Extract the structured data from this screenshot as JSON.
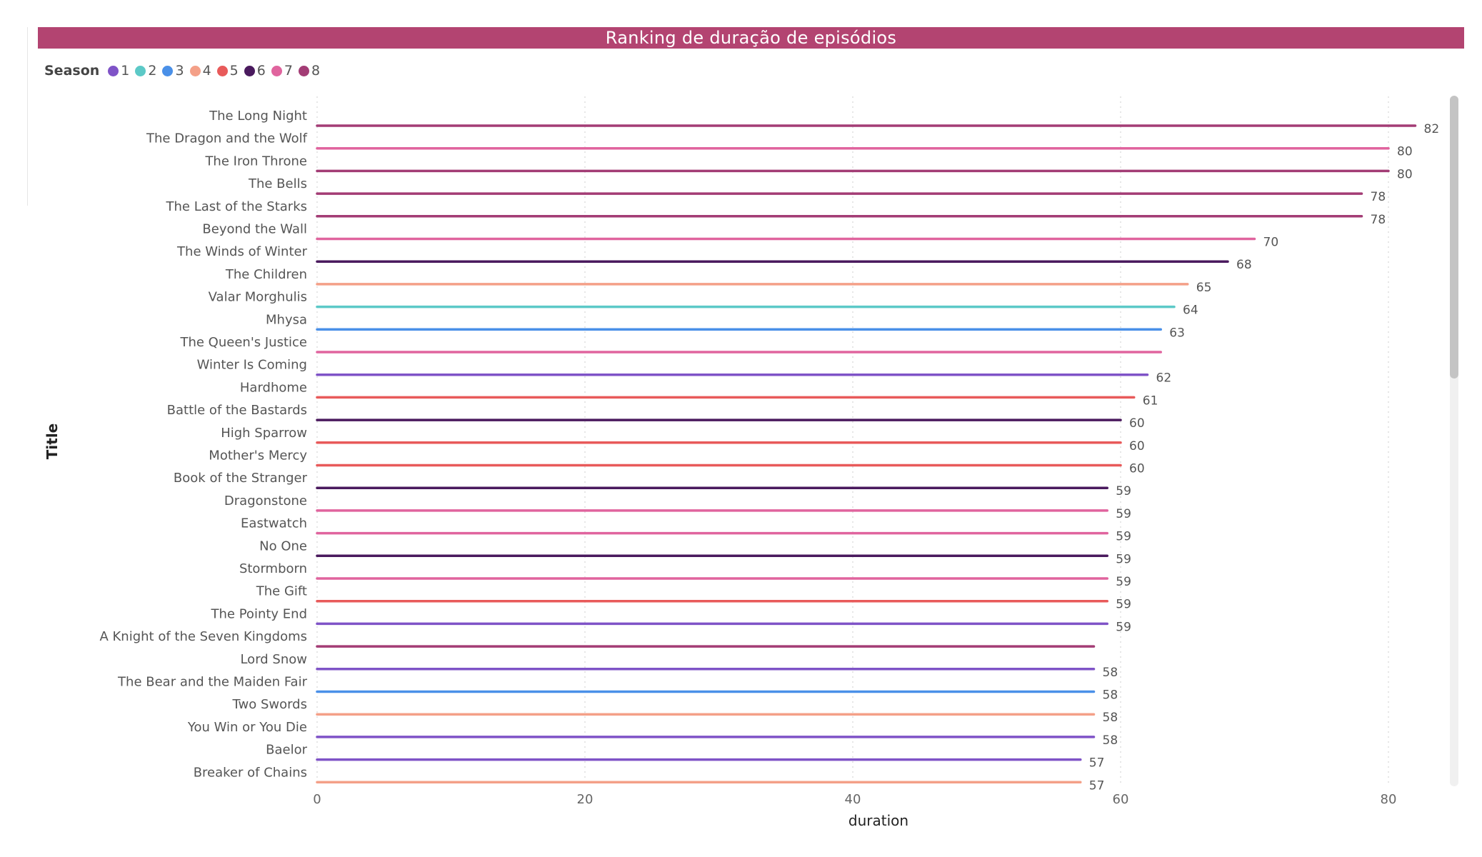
{
  "header": {
    "title": "Ranking de duração de episódios"
  },
  "legend": {
    "title": "Season",
    "items": [
      {
        "label": "1",
        "color": "#7F53C7"
      },
      {
        "label": "2",
        "color": "#5CC9C7"
      },
      {
        "label": "3",
        "color": "#4A90E8"
      },
      {
        "label": "4",
        "color": "#F4A088"
      },
      {
        "label": "5",
        "color": "#E85A5A"
      },
      {
        "label": "6",
        "color": "#4A1A5E"
      },
      {
        "label": "7",
        "color": "#E0649E"
      },
      {
        "label": "8",
        "color": "#A33C75"
      }
    ]
  },
  "chart_data": {
    "type": "bar",
    "orientation": "horizontal",
    "xlabel": "duration",
    "ylabel": "Title",
    "xlim": [
      0,
      82
    ],
    "xticks": [
      0,
      20,
      40,
      60,
      80
    ],
    "grid": "vertical dotted",
    "legend_position": "top-left",
    "categories": [
      "The Long Night",
      "The Dragon and the Wolf",
      "The Iron Throne",
      "The Bells",
      "The Last of the Starks",
      "Beyond the Wall",
      "The Winds of Winter",
      "The Children",
      "Valar Morghulis",
      "Mhysa",
      "The Queen's Justice",
      "Winter Is Coming",
      "Hardhome",
      "Battle of the Bastards",
      "High Sparrow",
      "Mother's Mercy",
      "Book of the Stranger",
      "Dragonstone",
      "Eastwatch",
      "No One",
      "Stormborn",
      "The Gift",
      "The Pointy End",
      "A Knight of the Seven Kingdoms",
      "Lord Snow",
      "The Bear and the Maiden Fair",
      "Two Swords",
      "You Win or You Die",
      "Baelor",
      "Breaker of Chains"
    ],
    "values": [
      82,
      80,
      80,
      78,
      78,
      70,
      68,
      65,
      64,
      63,
      63,
      62,
      61,
      60,
      60,
      60,
      59,
      59,
      59,
      59,
      59,
      59,
      59,
      58,
      58,
      58,
      58,
      58,
      57,
      57
    ],
    "seasons": [
      8,
      7,
      8,
      8,
      8,
      7,
      6,
      4,
      2,
      3,
      7,
      1,
      5,
      6,
      5,
      5,
      6,
      7,
      7,
      6,
      7,
      5,
      1,
      8,
      1,
      3,
      4,
      1,
      1,
      4
    ],
    "data_labels": [
      "82",
      "80",
      "80",
      "78",
      "78",
      "70",
      "68",
      "65",
      "64",
      "63",
      "",
      "62",
      "61",
      "60",
      "60",
      "60",
      "59",
      "59",
      "59",
      "59",
      "59",
      "59",
      "59",
      "",
      "58",
      "58",
      "58",
      "58",
      "57",
      "57"
    ]
  }
}
